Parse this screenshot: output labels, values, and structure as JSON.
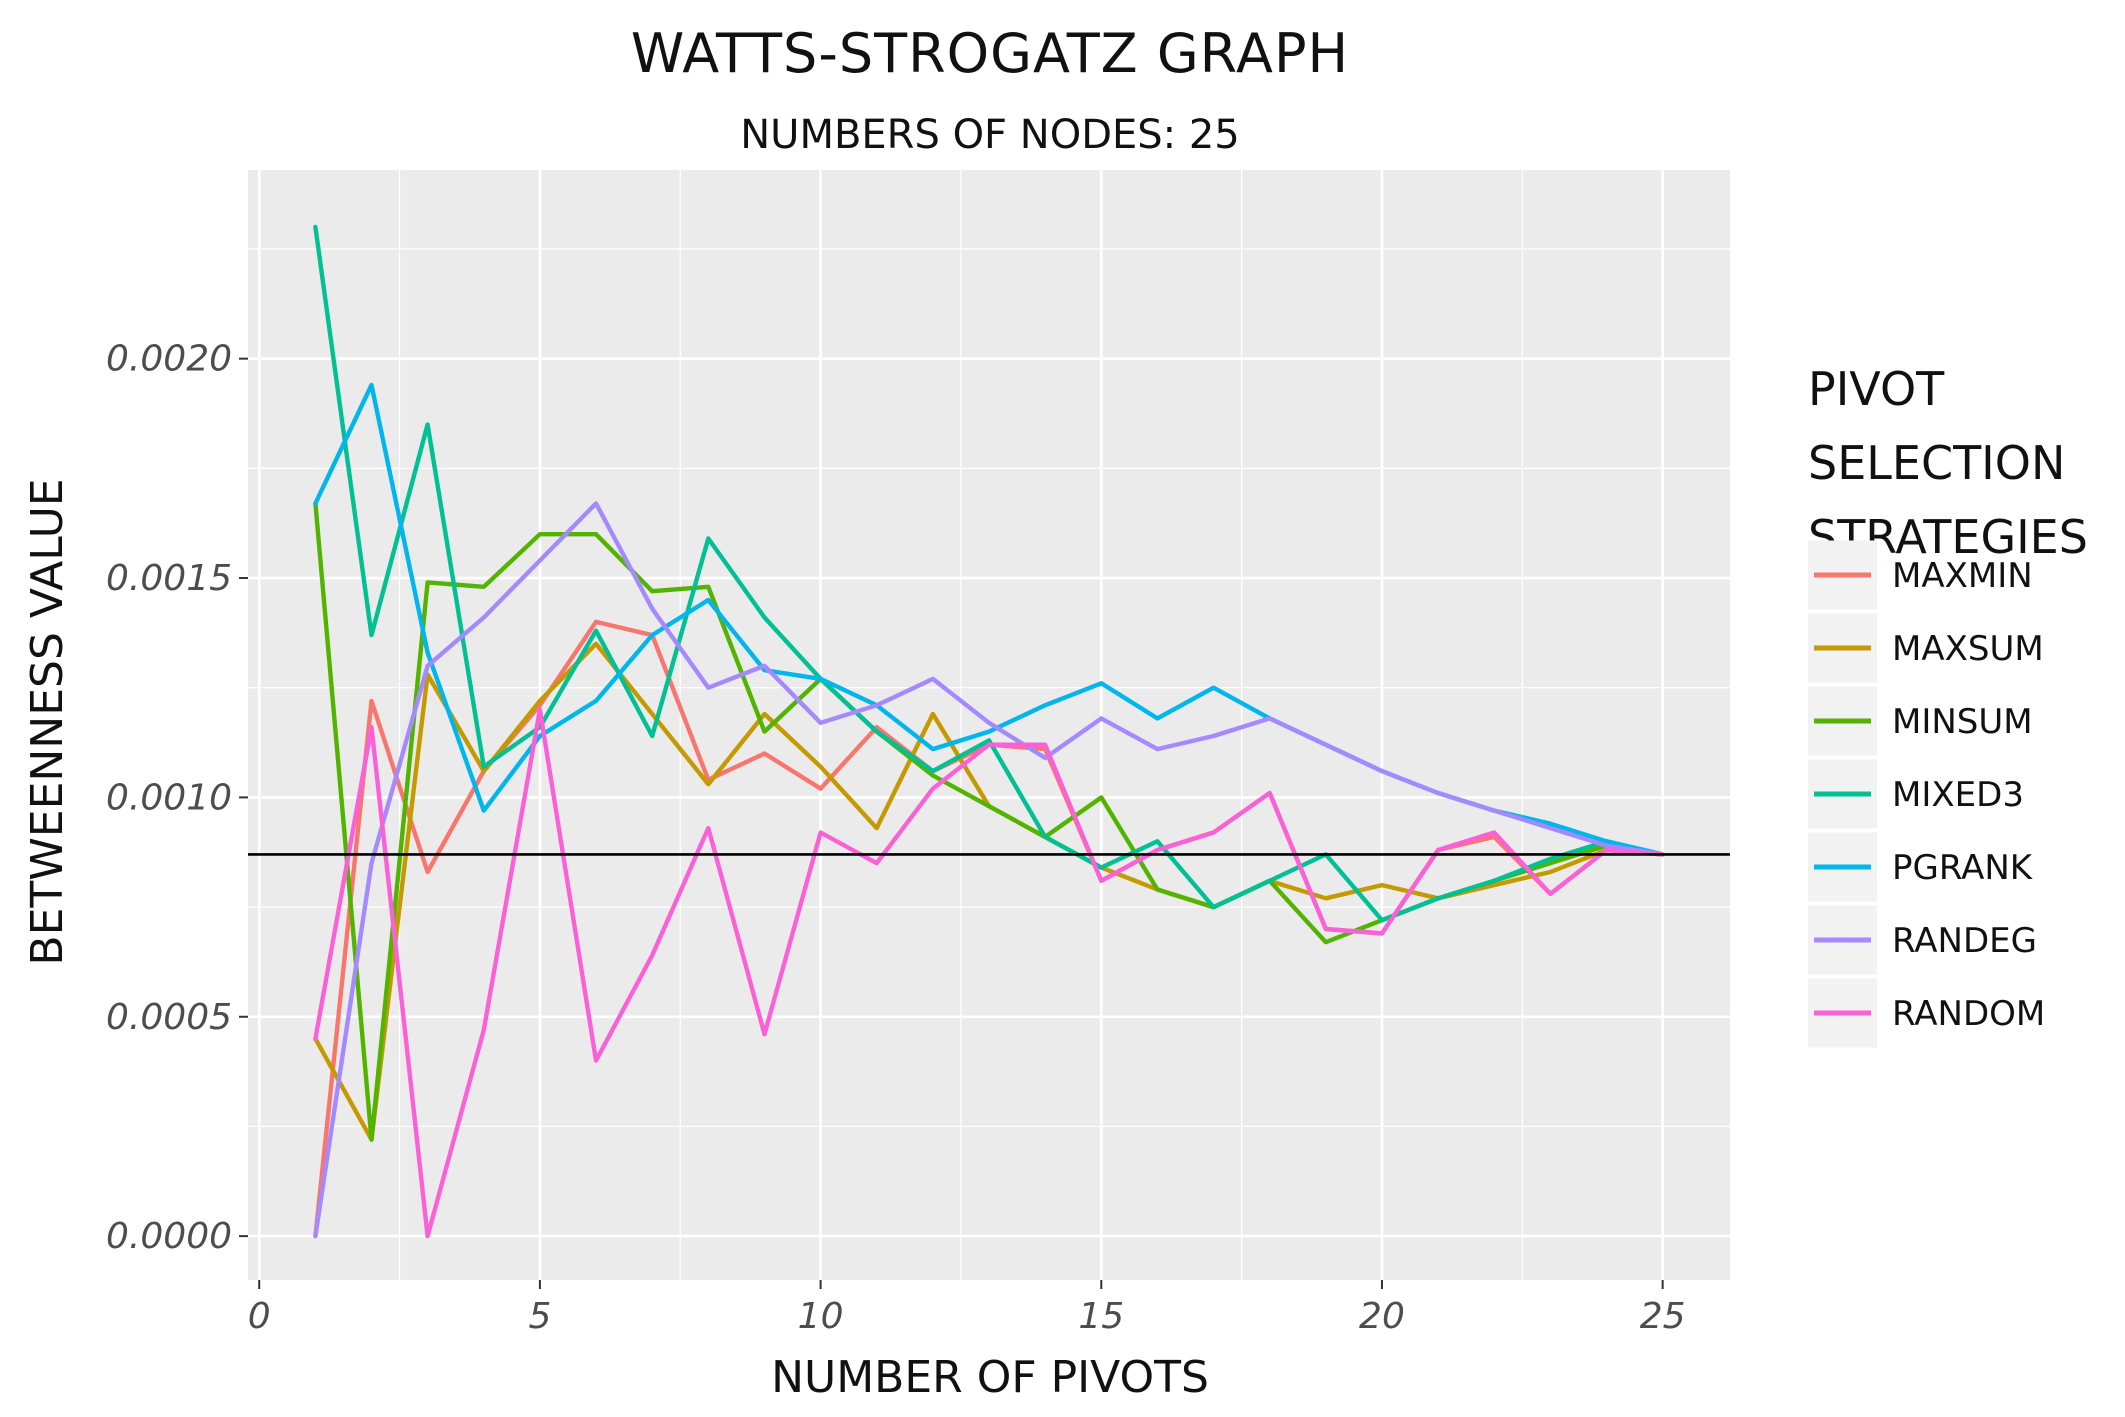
{
  "chart_data": {
    "type": "line",
    "title": "Watts-Strogatz graph",
    "subtitle": "Numbers of nodes: 25",
    "xlabel": "Number of pivots",
    "ylabel": "Betweenness value",
    "xlim": [
      -0.2,
      26.2
    ],
    "ylim": [
      -0.0001,
      0.00243
    ],
    "x_ticks": [
      0,
      5,
      10,
      15,
      20,
      25
    ],
    "x_tick_labels": [
      "0",
      "5",
      "10",
      "15",
      "20",
      "25"
    ],
    "y_ticks": [
      0.0,
      0.0005,
      0.001,
      0.0015,
      0.002
    ],
    "y_tick_labels": [
      "0.0000",
      "0.0005",
      "0.0010",
      "0.0015",
      "0.0020"
    ],
    "reference_line": 0.00087,
    "grid": true,
    "legend_title": "Pivot selection strategies",
    "legend_position": "right",
    "x": [
      1,
      2,
      3,
      4,
      5,
      6,
      7,
      8,
      9,
      10,
      11,
      12,
      13,
      14,
      15,
      16,
      17,
      18,
      19,
      20,
      21,
      22,
      23,
      24,
      25
    ],
    "series": [
      {
        "name": "maxmin",
        "color": "#F8766D",
        "values": [
          0.0,
          0.00122,
          0.00083,
          0.00106,
          0.00121,
          0.0014,
          0.00137,
          0.00104,
          0.0011,
          0.00102,
          0.00116,
          0.00106,
          0.00112,
          0.00111,
          0.00081,
          0.00088,
          0.00092,
          0.00101,
          0.0007,
          0.00069,
          0.00088,
          0.00091,
          0.00078,
          0.00088,
          0.00087
        ]
      },
      {
        "name": "maxsum",
        "color": "#C49A00",
        "values": [
          0.00045,
          0.00022,
          0.00128,
          0.00106,
          0.00122,
          0.00135,
          0.00119,
          0.00103,
          0.00119,
          0.00107,
          0.00093,
          0.00119,
          0.00098,
          0.00091,
          0.00084,
          0.00079,
          0.00075,
          0.00081,
          0.00077,
          0.0008,
          0.00077,
          0.0008,
          0.00083,
          0.00088,
          0.00087
        ]
      },
      {
        "name": "minsum",
        "color": "#53B400",
        "values": [
          0.00167,
          0.00022,
          0.00149,
          0.00148,
          0.0016,
          0.0016,
          0.00147,
          0.00148,
          0.00115,
          0.00127,
          0.00115,
          0.00105,
          0.00098,
          0.00091,
          0.001,
          0.00079,
          0.00075,
          0.00081,
          0.00067,
          0.00072,
          0.00077,
          0.00081,
          0.00085,
          0.00089,
          0.00087
        ]
      },
      {
        "name": "mixed3",
        "color": "#00C094",
        "values": [
          0.0023,
          0.00137,
          0.00185,
          0.00107,
          0.00116,
          0.00138,
          0.00114,
          0.00159,
          0.00141,
          0.00127,
          0.00115,
          0.00106,
          0.00113,
          0.00091,
          0.00084,
          0.0009,
          0.00075,
          0.00081,
          0.00087,
          0.00072,
          0.00077,
          0.00081,
          0.00086,
          0.0009,
          0.00087
        ]
      },
      {
        "name": "pgrank",
        "color": "#00B6EB",
        "values": [
          0.00167,
          0.00194,
          0.00133,
          0.00097,
          0.00114,
          0.00122,
          0.00137,
          0.00145,
          0.00129,
          0.00127,
          0.00121,
          0.00111,
          0.00115,
          0.00121,
          0.00126,
          0.00118,
          0.00125,
          0.00118,
          0.00112,
          0.00106,
          0.00101,
          0.00097,
          0.00094,
          0.0009,
          0.00087
        ]
      },
      {
        "name": "randeg",
        "color": "#A58AFF",
        "values": [
          0.0,
          0.00085,
          0.0013,
          0.00141,
          0.00154,
          0.00167,
          0.00143,
          0.00125,
          0.0013,
          0.00117,
          0.00121,
          0.00127,
          0.00117,
          0.00109,
          0.00118,
          0.00111,
          0.00114,
          0.00118,
          0.00112,
          0.00106,
          0.00101,
          0.00097,
          0.00093,
          0.00089,
          0.00087
        ]
      },
      {
        "name": "random",
        "color": "#FB61D7",
        "values": [
          0.00045,
          0.00116,
          0.0,
          0.00047,
          0.0012,
          0.0004,
          0.00064,
          0.00093,
          0.00046,
          0.00092,
          0.00085,
          0.00102,
          0.00112,
          0.00112,
          0.00081,
          0.00088,
          0.00092,
          0.00101,
          0.0007,
          0.00069,
          0.00088,
          0.00092,
          0.00078,
          0.00088,
          0.00087
        ]
      }
    ]
  }
}
